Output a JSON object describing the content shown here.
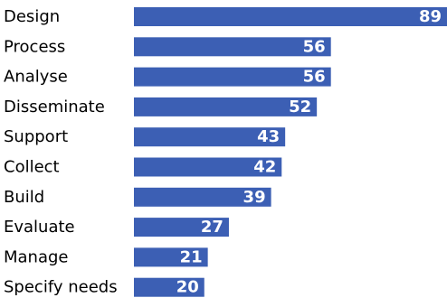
{
  "chart_data": {
    "type": "bar",
    "orientation": "horizontal",
    "categories": [
      "Design",
      "Process",
      "Analyse",
      "Disseminate",
      "Support",
      "Collect",
      "Build",
      "Evaluate",
      "Manage",
      "Specify needs"
    ],
    "values": [
      89,
      56,
      56,
      52,
      43,
      42,
      39,
      27,
      21,
      20
    ],
    "data_labels": [
      "89",
      "56",
      "56",
      "52",
      "43",
      "42",
      "39",
      "27",
      "21",
      "20"
    ],
    "xlim": [
      0,
      89
    ],
    "grid": false,
    "legend": "none",
    "bar_color": "#3c5fb4",
    "label_color": "#ffffff"
  }
}
